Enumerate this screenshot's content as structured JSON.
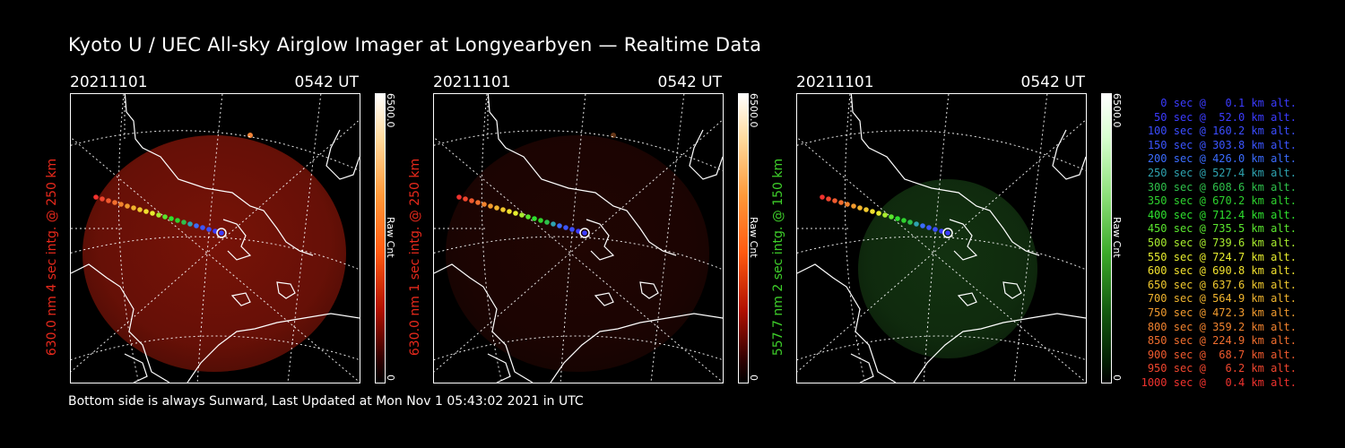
{
  "title": "Kyoto U / UEC All-sky Airglow Imager at Longyearbyen — Realtime Data",
  "footer": "Bottom side is always Sunward, Last Updated at Mon Nov  1 05:43:02 2021 in UTC",
  "colors": {
    "red_label": "#e8291c",
    "green_label": "#3ecf2a"
  },
  "panels": [
    {
      "date": "20211101",
      "time": "0542 UT",
      "ylabel": "630.0 nm 4 sec intg. @ 250 km",
      "label_color": "#e8291c",
      "colorbar_max": "6500.0",
      "colorbar_min": "0",
      "colorbar_unit": "Raw Cnt",
      "colormap": "red",
      "disk_intensity": 0.75
    },
    {
      "date": "20211101",
      "time": "0542 UT",
      "ylabel": "630.0 nm 1 sec intg. @ 250 km",
      "label_color": "#e8291c",
      "colorbar_max": "6500.0",
      "colorbar_min": "0",
      "colorbar_unit": "Raw Cnt",
      "colormap": "red",
      "disk_intensity": 0.2
    },
    {
      "date": "20211101",
      "time": "0542 UT",
      "ylabel": "557.7 nm 2 sec intg. @ 150 km",
      "label_color": "#3ecf2a",
      "colorbar_max": "6500.0",
      "colorbar_min": "0",
      "colorbar_unit": "Raw Cnt",
      "colormap": "green",
      "disk_intensity": 0.45
    }
  ],
  "legend": [
    {
      "text": "   0 sec @   0.1 km alt.",
      "color": "#3b3bff"
    },
    {
      "text": "  50 sec @  52.0 km alt.",
      "color": "#3b3bff"
    },
    {
      "text": " 100 sec @ 160.2 km alt.",
      "color": "#3b4dff"
    },
    {
      "text": " 150 sec @ 303.8 km alt.",
      "color": "#3b55ff"
    },
    {
      "text": " 200 sec @ 426.0 km alt.",
      "color": "#3b6cff"
    },
    {
      "text": " 250 sec @ 527.4 km alt.",
      "color": "#2ea3b0"
    },
    {
      "text": " 300 sec @ 608.6 km alt.",
      "color": "#2ec04a"
    },
    {
      "text": " 350 sec @ 670.2 km alt.",
      "color": "#2ed22e"
    },
    {
      "text": " 400 sec @ 712.4 km alt.",
      "color": "#2ee02e"
    },
    {
      "text": " 450 sec @ 735.5 km alt.",
      "color": "#5ae62e"
    },
    {
      "text": " 500 sec @ 739.6 km alt.",
      "color": "#a8ec2e"
    },
    {
      "text": " 550 sec @ 724.7 km alt.",
      "color": "#e6ec2e"
    },
    {
      "text": " 600 sec @ 690.8 km alt.",
      "color": "#f0e02e"
    },
    {
      "text": " 650 sec @ 637.6 km alt.",
      "color": "#f0c82e"
    },
    {
      "text": " 700 sec @ 564.9 km alt.",
      "color": "#f0b42e"
    },
    {
      "text": " 750 sec @ 472.3 km alt.",
      "color": "#f09a2e"
    },
    {
      "text": " 800 sec @ 359.2 km alt.",
      "color": "#f0822e"
    },
    {
      "text": " 850 sec @ 224.9 km alt.",
      "color": "#f06e2e"
    },
    {
      "text": " 900 sec @  68.7 km alt.",
      "color": "#f05a2e"
    },
    {
      "text": " 950 sec @   6.2 km alt.",
      "color": "#f0462e"
    },
    {
      "text": "1000 sec @   0.4 km alt.",
      "color": "#f0322e"
    }
  ]
}
